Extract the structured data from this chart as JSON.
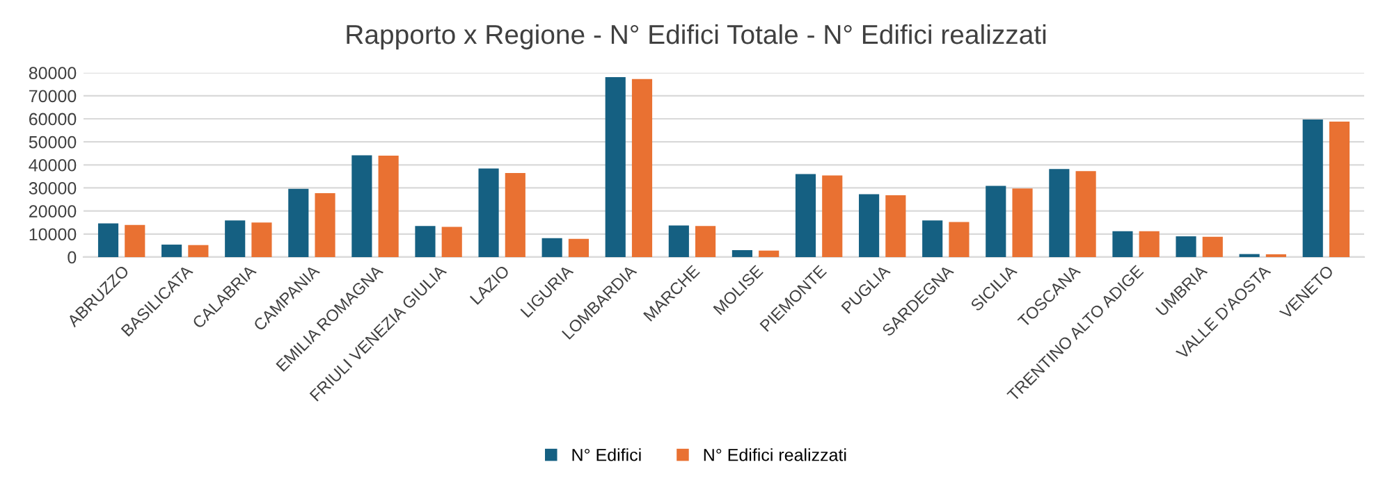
{
  "chart_data": {
    "type": "bar",
    "title": "Rapporto x Regione - N° Edifici Totale - N° Edifici realizzati",
    "categories": [
      "ABRUZZO",
      "BASILICATA",
      "CALABRIA",
      "CAMPANIA",
      "EMILIA ROMAGNA",
      "FRIULI VENEZIA GIULIA",
      "LAZIO",
      "LIGURIA",
      "LOMBARDIA",
      "MARCHE",
      "MOLISE",
      "PIEMONTE",
      "PUGLIA",
      "SARDEGNA",
      "SICILIA",
      "TOSCANA",
      "TRENTINO ALTO ADIGE",
      "UMBRIA",
      "VALLE D'AOSTA",
      "VENETO"
    ],
    "series": [
      {
        "name": "N° Edifici",
        "color": "#156082",
        "values": [
          14600,
          5400,
          15900,
          29600,
          44200,
          13500,
          38400,
          8200,
          78100,
          13700,
          3000,
          36000,
          27300,
          15900,
          30900,
          38200,
          11200,
          9000,
          1300,
          59700
        ]
      },
      {
        "name": "N° Edifici realizzati",
        "color": "#e97132",
        "values": [
          13900,
          5200,
          15000,
          27700,
          44000,
          13100,
          36500,
          7900,
          77300,
          13500,
          2800,
          35400,
          26800,
          15200,
          29800,
          37300,
          11200,
          8800,
          1200,
          58800
        ]
      }
    ],
    "ylim": [
      0,
      80000
    ],
    "yticks": [
      0,
      10000,
      20000,
      30000,
      40000,
      50000,
      60000,
      70000,
      80000
    ],
    "grid": "y",
    "legend": "bottom"
  }
}
